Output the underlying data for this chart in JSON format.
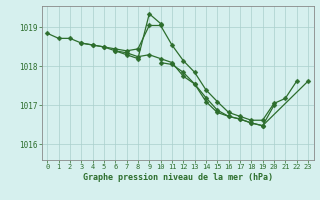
{
  "bg_color": "#d6f0ee",
  "plot_bg_color": "#d6f0ee",
  "grid_color": "#aacfcc",
  "line_color": "#2d6e2d",
  "marker": "D",
  "markersize": 2.5,
  "linewidth": 0.9,
  "ylim": [
    1015.6,
    1019.55
  ],
  "xlim": [
    -0.5,
    23.5
  ],
  "yticks": [
    1016,
    1017,
    1018,
    1019
  ],
  "xticks": [
    0,
    1,
    2,
    3,
    4,
    5,
    6,
    7,
    8,
    9,
    10,
    11,
    12,
    13,
    14,
    15,
    16,
    17,
    18,
    19,
    20,
    21,
    22,
    23
  ],
  "series": [
    {
      "x": [
        0,
        1,
        2,
        3,
        4,
        5,
        6,
        7,
        8,
        9,
        10,
        11,
        12,
        13,
        14,
        15,
        16,
        17,
        18,
        19,
        20,
        21,
        22
      ],
      "y": [
        1018.85,
        1018.72,
        1018.72,
        1018.6,
        1018.55,
        1018.5,
        1018.45,
        1018.4,
        1018.45,
        1019.05,
        1019.05,
        1018.55,
        1018.15,
        1017.85,
        1017.4,
        1017.1,
        1016.82,
        1016.72,
        1016.62,
        1016.62,
        1017.05,
        1017.18,
        1017.62
      ]
    },
    {
      "x": [
        3,
        4,
        5,
        6,
        7,
        8,
        9,
        10
      ],
      "y": [
        1018.6,
        1018.55,
        1018.5,
        1018.4,
        1018.3,
        1018.2,
        1019.35,
        1019.1
      ]
    },
    {
      "x": [
        6,
        7,
        8,
        9,
        10,
        11,
        12,
        13,
        14,
        15,
        16,
        17,
        18,
        19,
        20
      ],
      "y": [
        1018.4,
        1018.35,
        1018.25,
        1018.3,
        1018.2,
        1018.1,
        1017.75,
        1017.55,
        1017.1,
        1016.82,
        1016.72,
        1016.65,
        1016.55,
        1016.48,
        1017.0
      ]
    },
    {
      "x": [
        10,
        11,
        12,
        13,
        14,
        15,
        16,
        17,
        18,
        19,
        23
      ],
      "y": [
        1018.1,
        1018.05,
        1017.85,
        1017.55,
        1017.2,
        1016.88,
        1016.72,
        1016.65,
        1016.55,
        1016.48,
        1017.62
      ]
    }
  ],
  "tick_fontsize": 5.0,
  "label_text": "Graphe pression niveau de la mer (hPa)",
  "label_fontsize": 6.0,
  "label_color": "#2d6e2d",
  "spine_color": "#888888"
}
